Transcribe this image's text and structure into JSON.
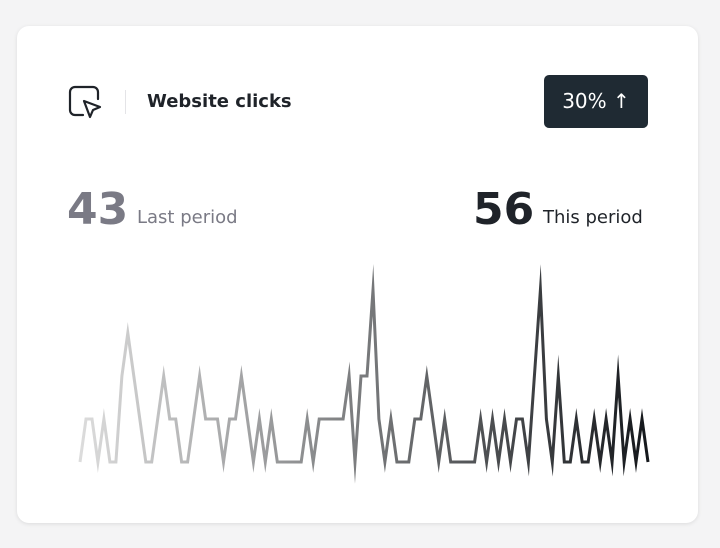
{
  "header": {
    "title": "Website clicks",
    "badge": "30% ↑"
  },
  "stats": {
    "last": {
      "value": 43,
      "label": "Last period"
    },
    "this": {
      "value": 56,
      "label": "This period"
    }
  },
  "chart_data": {
    "type": "line",
    "values": [
      0,
      1,
      1,
      0,
      1,
      0,
      0,
      2,
      3,
      2,
      1,
      0,
      0,
      1,
      2,
      1,
      1,
      0,
      0,
      1,
      2,
      1,
      1,
      1,
      0,
      1,
      1,
      2,
      1,
      0,
      1,
      0,
      1,
      0,
      0,
      0,
      0,
      0,
      1,
      0,
      1,
      1,
      1,
      1,
      1,
      2,
      0,
      2,
      2,
      4,
      1,
      0,
      1,
      0,
      0,
      0,
      1,
      1,
      2,
      1,
      0,
      1,
      0,
      0,
      0,
      0,
      0,
      1,
      0,
      1,
      0,
      1,
      0,
      1,
      1,
      0,
      2,
      4,
      1,
      0,
      2,
      0,
      0,
      1,
      0,
      0,
      1,
      0,
      1,
      0,
      2,
      0,
      1,
      0,
      1,
      0
    ],
    "ylim": [
      0,
      4
    ],
    "colors": [
      "#dcdcdc",
      "#15181c"
    ]
  }
}
